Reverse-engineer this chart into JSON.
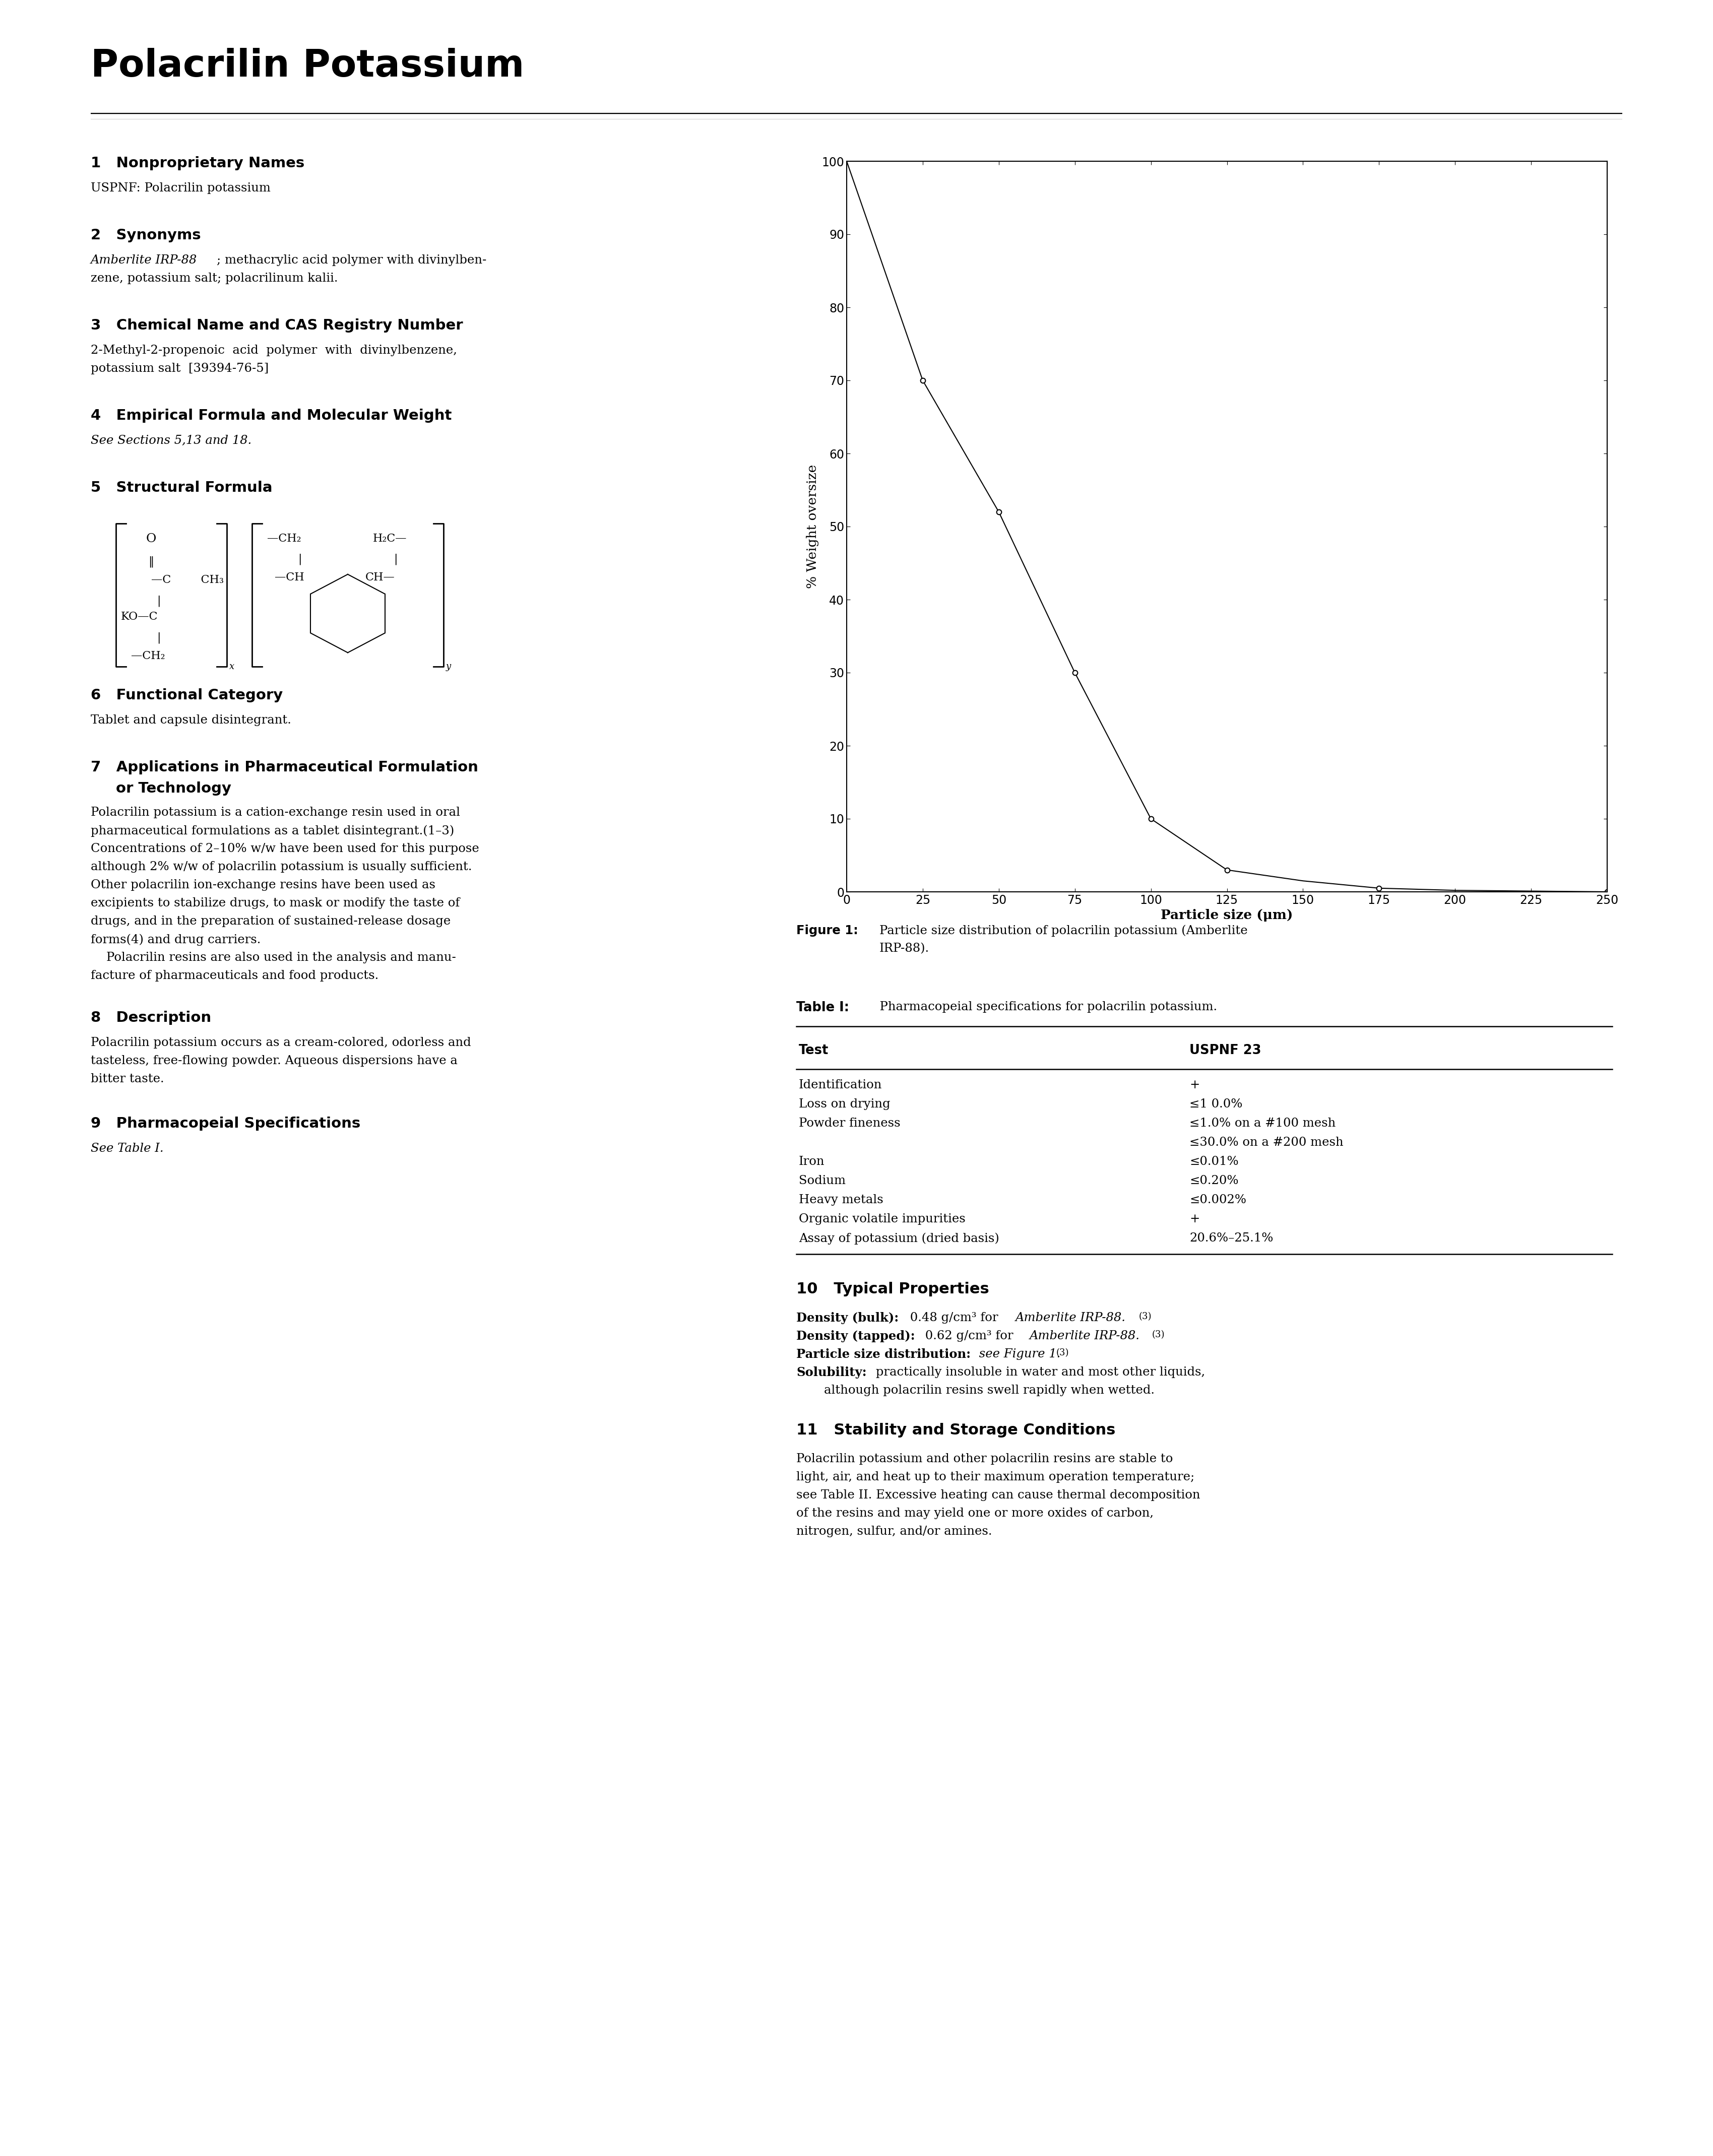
{
  "title": "Polacrilin Potassium",
  "page_bg": "#ffffff",
  "chart": {
    "x_data": [
      0,
      25,
      50,
      75,
      100,
      125,
      150,
      175,
      200,
      225,
      250
    ],
    "y_data": [
      100,
      70,
      52,
      30,
      10,
      3,
      1.5,
      0.5,
      0.2,
      0.1,
      0
    ],
    "marker_x": [
      25,
      50,
      75,
      100,
      125,
      175,
      250
    ],
    "marker_y": [
      70,
      52,
      30,
      10,
      3,
      0.5,
      0
    ],
    "xlabel": "Particle size (μm)",
    "ylabel": "% Weight oversize",
    "xlim": [
      0,
      250
    ],
    "ylim": [
      0,
      100
    ],
    "xticks": [
      0,
      25,
      50,
      75,
      100,
      125,
      150,
      175,
      200,
      225,
      250
    ],
    "yticks": [
      0,
      10,
      20,
      30,
      40,
      50,
      60,
      70,
      80,
      90,
      100
    ],
    "line_color": "#000000",
    "marker_color": "#ffffff",
    "marker_edge_color": "#000000",
    "marker_size": 7,
    "line_width": 1.5
  },
  "left_col_sections": [
    {
      "type": "heading",
      "number": "1",
      "title": "Nonproprietary Names"
    },
    {
      "type": "body",
      "text": "USPNF: Polacrilin potassium"
    },
    {
      "type": "spacer"
    },
    {
      "type": "heading",
      "number": "2",
      "title": "Synonyms"
    },
    {
      "type": "body_mixed",
      "parts": [
        {
          "text": "Amberlite IRP-88",
          "style": "italic"
        },
        {
          "text": "; methacrylic acid polymer with divinylben-\nzene, potassium salt; polacrilinum kalii.",
          "style": "normal"
        }
      ]
    },
    {
      "type": "spacer"
    },
    {
      "type": "heading",
      "number": "3",
      "title": "Chemical Name and CAS Registry Number"
    },
    {
      "type": "body",
      "text": "2-Methyl-2-propenoic  acid  polymer  with  divinylbenzene,\npotassium salt  [39394-76-5]"
    },
    {
      "type": "spacer"
    },
    {
      "type": "heading",
      "number": "4",
      "title": "Empirical Formula and Molecular Weight"
    },
    {
      "type": "body_italic",
      "text": "See Sections 5,13 and 18."
    },
    {
      "type": "spacer"
    },
    {
      "type": "heading",
      "number": "5",
      "title": "Structural Formula"
    },
    {
      "type": "struct_formula"
    },
    {
      "type": "spacer"
    },
    {
      "type": "heading",
      "number": "6",
      "title": "Functional Category"
    },
    {
      "type": "body",
      "text": "Tablet and capsule disintegrant."
    },
    {
      "type": "spacer"
    },
    {
      "type": "heading2",
      "number": "7",
      "title": "Applications in Pharmaceutical Formulation\nor Technology"
    },
    {
      "type": "body",
      "text": "Polacrilin potassium is a cation-exchange resin used in oral\npharmaceutical formulations as a tablet disintegrant.(1–3)\nConcentrations of 2–10% w/w have been used for this purpose\nalthough 2% w/w of polacrilin potassium is usually sufficient.\nOther polacrilin ion-exchange resins have been used as\nexcipients to stabilize drugs, to mask or modify the taste of\ndrugs, and in the preparation of sustained-release dosage\nforms(4) and drug carriers.\n    Polacrilin resins are also used in the analysis and manu-\nfacture of pharmaceuticals and food products."
    },
    {
      "type": "spacer"
    },
    {
      "type": "heading",
      "number": "8",
      "title": "Description"
    },
    {
      "type": "body",
      "text": "Polacrilin potassium occurs as a cream-colored, odorless and\ntasteless, free-flowing powder. Aqueous dispersions have a\nbitter taste."
    },
    {
      "type": "spacer"
    },
    {
      "type": "heading",
      "number": "9",
      "title": "Pharmacopeial Specifications"
    },
    {
      "type": "body_italic",
      "text": "See Table I."
    }
  ],
  "figure_caption_bold": "Figure 1:",
  "figure_caption_text": "Particle size distribution of polacrilin potassium (Amberlite\n    IRP-88).",
  "table_label_bold": "Table I:",
  "table_label_text": "  Pharmacopeial specifications for polacrilin potassium.",
  "table_col_header1": "Test",
  "table_col_header2": "USPNF 23",
  "table_rows": [
    [
      "Identification",
      "+"
    ],
    [
      "Loss on drying",
      "≤1 0.0%"
    ],
    [
      "Powder fineness",
      "≤1.0% on a #100 mesh\n≤30.0% on a #200 mesh"
    ],
    [
      "Iron",
      "≤0.01%"
    ],
    [
      "Sodium",
      "≤0.20%"
    ],
    [
      "Heavy metals",
      "≤0.002%"
    ],
    [
      "Organic volatile impurities",
      "+"
    ],
    [
      "Assay of potassium (dried basis)",
      "20.6%–25.1%"
    ]
  ],
  "section10_title": "10   Typical Properties",
  "section11_title": "11   Stability and Storage Conditions"
}
